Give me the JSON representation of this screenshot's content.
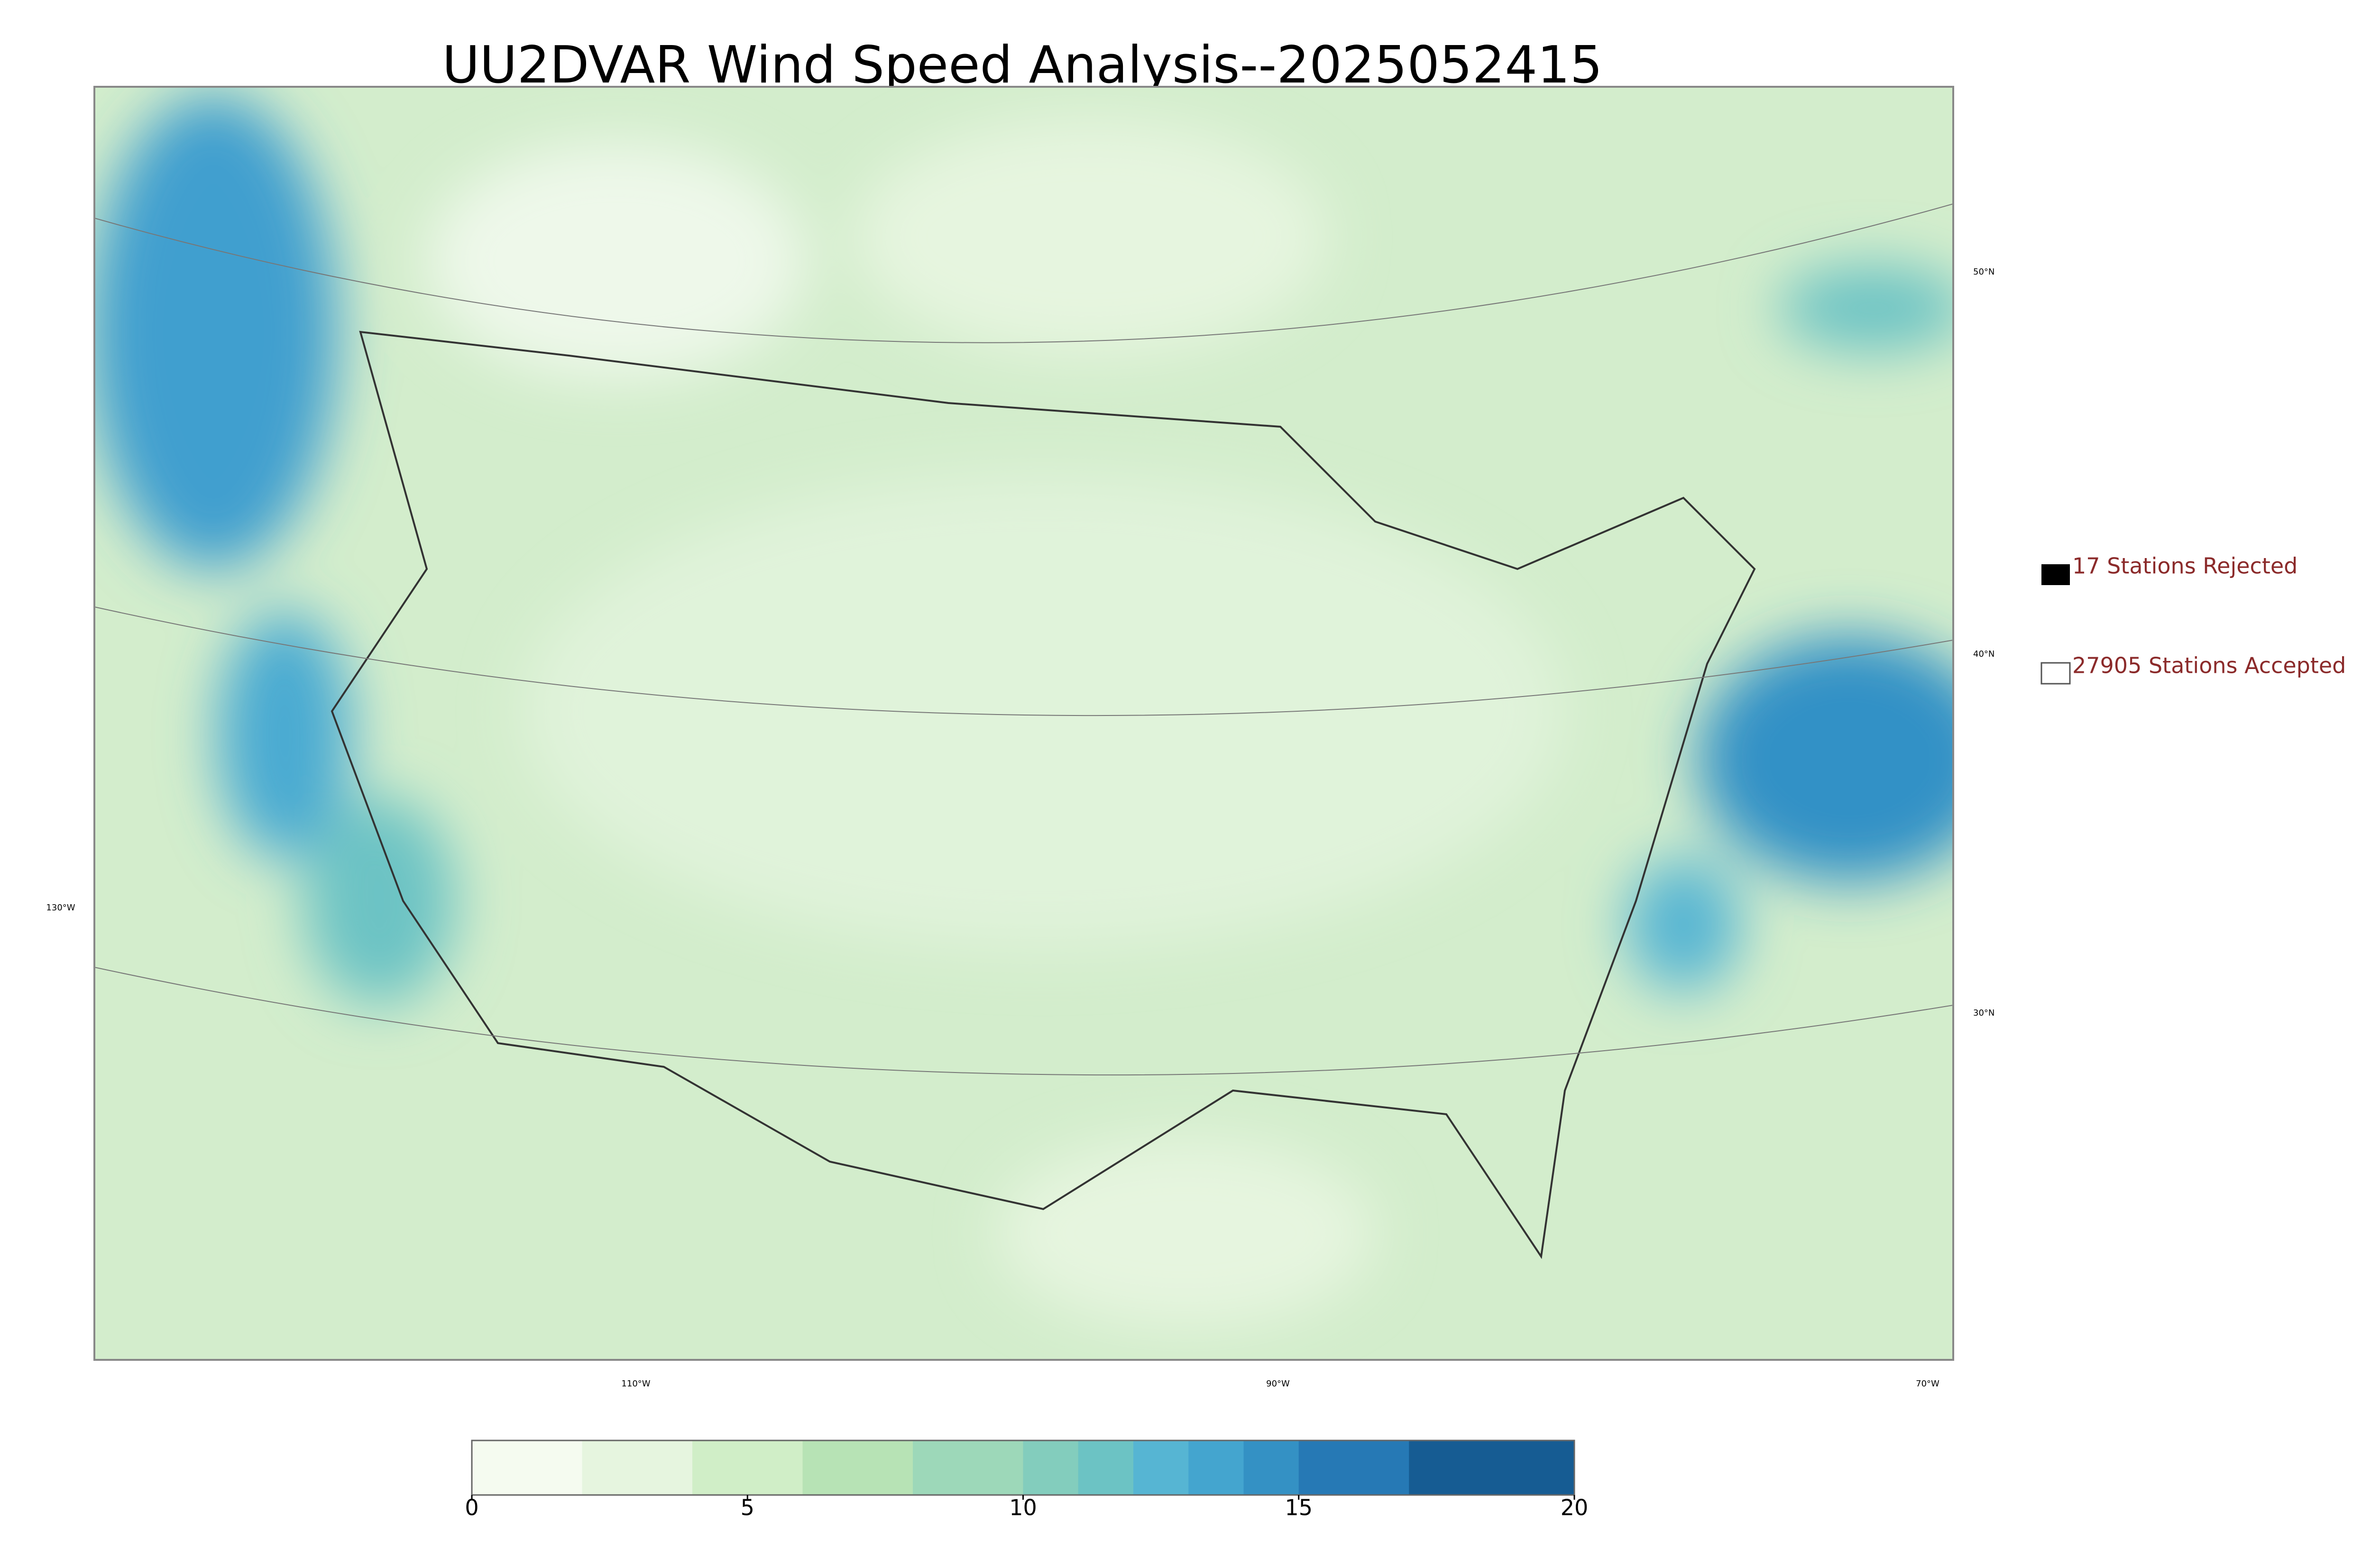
{
  "title": "UU2DVAR Wind Speed Analysis--2025052415",
  "legend": {
    "rejected": "17 Stations Rejected",
    "accepted": "27905 Stations Accepted"
  },
  "lat_labels": [
    "50°N",
    "40°N",
    "30°N"
  ],
  "lon_labels": [
    "130°W",
    "110°W",
    "90°W",
    "70°W"
  ],
  "colorbar": {
    "range": [
      0,
      20
    ],
    "ticks": [
      0,
      5,
      10,
      15,
      20
    ],
    "levels": [
      0,
      2,
      4,
      6,
      8,
      10,
      11,
      12,
      13,
      14,
      15,
      17,
      20
    ],
    "colors": [
      "#f5fbf0",
      "#e6f5df",
      "#d0eec7",
      "#b7e3b5",
      "#9dd8b9",
      "#83cdbd",
      "#6cc3c4",
      "#56b5d3",
      "#44a5cf",
      "#3491c4",
      "#2679b5",
      "#165c93"
    ]
  }
}
